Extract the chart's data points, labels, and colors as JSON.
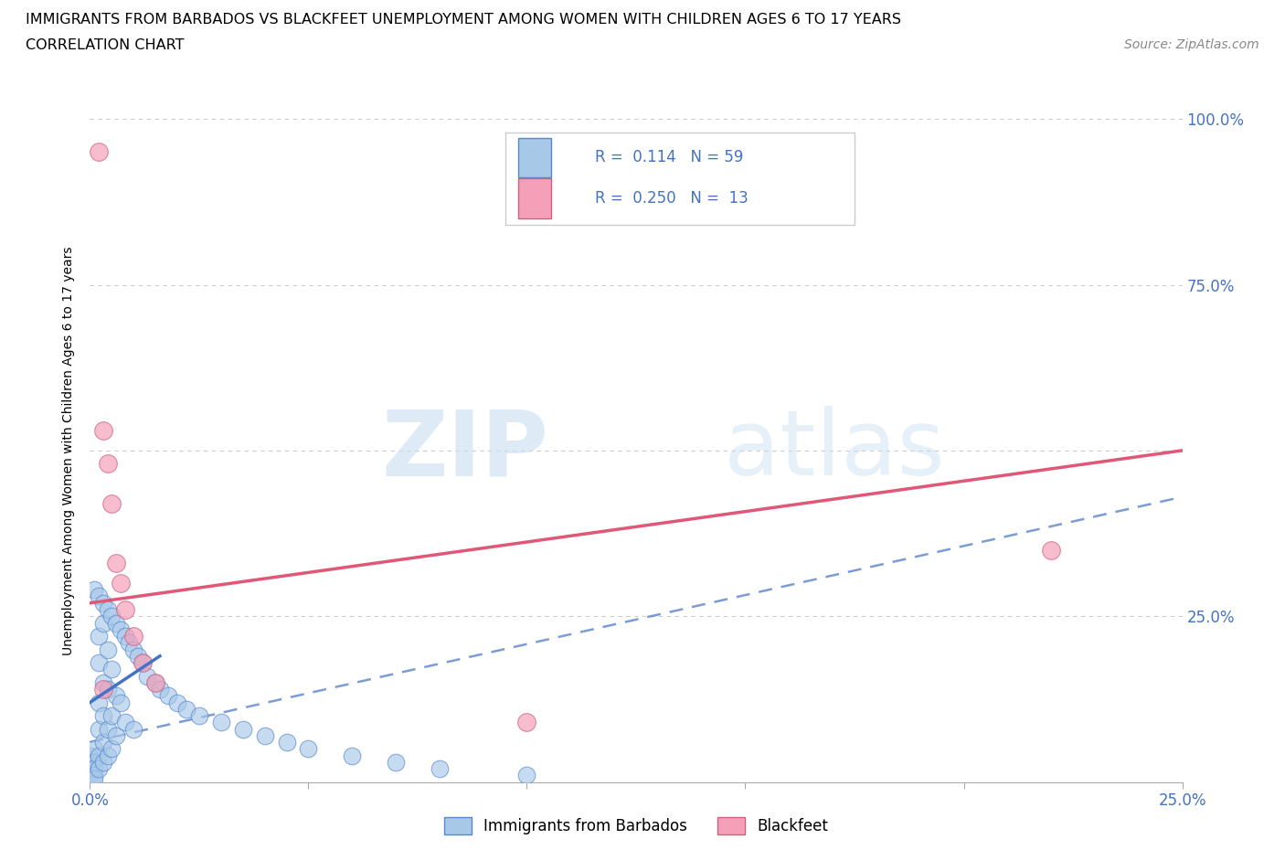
{
  "title_line1": "IMMIGRANTS FROM BARBADOS VS BLACKFEET UNEMPLOYMENT AMONG WOMEN WITH CHILDREN AGES 6 TO 17 YEARS",
  "title_line2": "CORRELATION CHART",
  "source_text": "Source: ZipAtlas.com",
  "ylabel": "Unemployment Among Women with Children Ages 6 to 17 years",
  "xlim": [
    0.0,
    0.25
  ],
  "ylim": [
    0.0,
    1.0
  ],
  "xticks": [
    0.0,
    0.05,
    0.1,
    0.15,
    0.2,
    0.25
  ],
  "yticks": [
    0.0,
    0.25,
    0.5,
    0.75,
    1.0
  ],
  "xticklabels_show": {
    "0.0": "0.0%",
    "0.25": "25.0%"
  },
  "yticklabels_show": {
    "0.25": "25.0%",
    "0.75": "75.0%",
    "1.0": "100.0%"
  },
  "watermark_zip": "ZIP",
  "watermark_atlas": "atlas",
  "blue_color": "#a8c8e8",
  "pink_color": "#f4a0b8",
  "blue_edge_color": "#5588cc",
  "pink_edge_color": "#d06080",
  "blue_line_color": "#4472c4",
  "pink_line_color": "#e05878",
  "grid_color": "#cccccc",
  "blue_scatter_x": [
    0.0,
    0.0,
    0.0,
    0.001,
    0.001,
    0.001,
    0.001,
    0.001,
    0.001,
    0.002,
    0.002,
    0.002,
    0.002,
    0.002,
    0.002,
    0.002,
    0.003,
    0.003,
    0.003,
    0.003,
    0.003,
    0.003,
    0.004,
    0.004,
    0.004,
    0.004,
    0.004,
    0.005,
    0.005,
    0.005,
    0.005,
    0.006,
    0.006,
    0.006,
    0.007,
    0.007,
    0.008,
    0.008,
    0.009,
    0.01,
    0.01,
    0.011,
    0.012,
    0.013,
    0.015,
    0.016,
    0.018,
    0.02,
    0.022,
    0.025,
    0.03,
    0.035,
    0.04,
    0.045,
    0.05,
    0.06,
    0.07,
    0.08,
    0.1
  ],
  "blue_scatter_y": [
    0.04,
    0.02,
    0.01,
    0.29,
    0.05,
    0.03,
    0.02,
    0.01,
    0.005,
    0.28,
    0.22,
    0.18,
    0.12,
    0.08,
    0.04,
    0.02,
    0.27,
    0.24,
    0.15,
    0.1,
    0.06,
    0.03,
    0.26,
    0.2,
    0.14,
    0.08,
    0.04,
    0.25,
    0.17,
    0.1,
    0.05,
    0.24,
    0.13,
    0.07,
    0.23,
    0.12,
    0.22,
    0.09,
    0.21,
    0.2,
    0.08,
    0.19,
    0.18,
    0.16,
    0.15,
    0.14,
    0.13,
    0.12,
    0.11,
    0.1,
    0.09,
    0.08,
    0.07,
    0.06,
    0.05,
    0.04,
    0.03,
    0.02,
    0.01
  ],
  "pink_scatter_x": [
    0.002,
    0.003,
    0.004,
    0.005,
    0.006,
    0.007,
    0.008,
    0.01,
    0.012,
    0.015,
    0.1,
    0.22,
    0.003
  ],
  "pink_scatter_y": [
    0.95,
    0.53,
    0.48,
    0.42,
    0.33,
    0.3,
    0.26,
    0.22,
    0.18,
    0.15,
    0.09,
    0.35,
    0.14
  ],
  "blue_trend_x": [
    0.0,
    0.016
  ],
  "blue_trend_y": [
    0.12,
    0.19
  ],
  "blue_dash_trend_x": [
    0.0,
    0.25
  ],
  "blue_dash_trend_y": [
    0.06,
    0.43
  ],
  "pink_trend_x": [
    0.0,
    0.25
  ],
  "pink_trend_y": [
    0.27,
    0.5
  ]
}
